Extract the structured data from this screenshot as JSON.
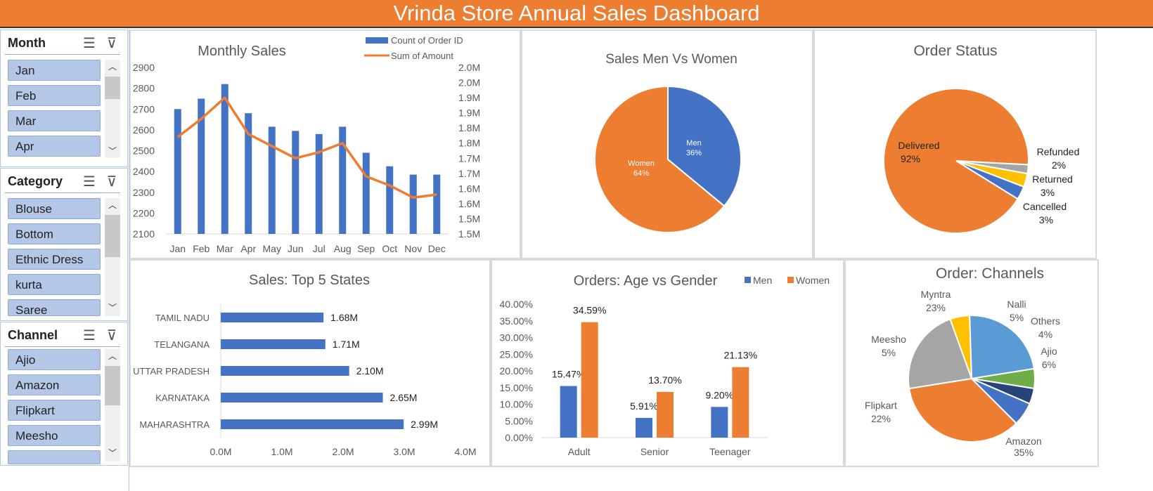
{
  "dashboard": {
    "title": "Vrinda Store Annual Sales Dashboard"
  },
  "colors": {
    "header": "#ed7d31",
    "orange": "#ed7d31",
    "blue": "#4472c4",
    "slicer_item": "#b4c7e7"
  },
  "slicers": [
    {
      "title": "Month",
      "items": [
        "Jan",
        "Feb",
        "Mar",
        "Apr"
      ]
    },
    {
      "title": "Category",
      "items": [
        "Blouse",
        "Bottom",
        "Ethnic Dress",
        "kurta",
        "Saree"
      ]
    },
    {
      "title": "Channel",
      "items": [
        "Ajio",
        "Amazon",
        "Flipkart",
        "Meesho"
      ]
    }
  ],
  "icons": {
    "multi_select": "multi-select-icon",
    "clear_filter": "clear-filter-icon",
    "scroll_up": "chevron-up-icon",
    "scroll_down": "chevron-down-icon"
  },
  "chart_data": [
    {
      "type": "bar+line",
      "title": "Monthly Sales",
      "categories": [
        "Jan",
        "Feb",
        "Mar",
        "Apr",
        "May",
        "Jun",
        "Jul",
        "Aug",
        "Sep",
        "Oct",
        "Nov",
        "Dec"
      ],
      "series": [
        {
          "name": "Count of Order ID",
          "kind": "bar",
          "axis": "left",
          "color": "#4472c4",
          "values": [
            2700,
            2750,
            2820,
            2680,
            2615,
            2595,
            2580,
            2615,
            2490,
            2425,
            2385,
            2385
          ]
        },
        {
          "name": "Sum of Amount",
          "kind": "line",
          "axis": "right",
          "color": "#ed7d31",
          "values": [
            1.82,
            1.88,
            1.95,
            1.83,
            1.79,
            1.75,
            1.77,
            1.8,
            1.69,
            1.66,
            1.62,
            1.63
          ]
        }
      ],
      "ylim_left": [
        2100,
        2900
      ],
      "yticks_left": [
        "2100",
        "2200",
        "2300",
        "2400",
        "2500",
        "2600",
        "2700",
        "2800",
        "2900"
      ],
      "ylim_right": [
        1.5,
        2.05
      ],
      "yticks_right": [
        "1.5M",
        "1.5M",
        "1.6M",
        "1.6M",
        "1.7M",
        "1.7M",
        "1.8M",
        "1.8M",
        "1.9M",
        "1.9M",
        "2.0M",
        "2.0M"
      ],
      "legend": "top-right"
    },
    {
      "type": "pie",
      "title": "Sales Men Vs Women",
      "labels": [
        "Men",
        "Women"
      ],
      "values": [
        36,
        64
      ],
      "data_labels": [
        "36%",
        "64%"
      ],
      "colors": [
        "#4472c4",
        "#ed7d31"
      ]
    },
    {
      "type": "pie",
      "title": "Order Status",
      "labels": [
        "Delivered",
        "Refunded",
        "Returned",
        "Cancelled"
      ],
      "values": [
        92,
        2,
        3,
        3
      ],
      "data_labels": [
        "92%",
        "2%",
        "3%",
        "3%"
      ],
      "colors": [
        "#ed7d31",
        "#a5a5a5",
        "#ffc000",
        "#4472c4"
      ]
    },
    {
      "type": "bar",
      "orientation": "horizontal",
      "title": "Sales: Top 5 States",
      "categories": [
        "TAMIL NADU",
        "TELANGANA",
        "UTTAR PRADESH",
        "KARNATAKA",
        "MAHARASHTRA"
      ],
      "values": [
        1.68,
        1.71,
        2.1,
        2.65,
        2.99
      ],
      "data_labels": [
        "1.68M",
        "1.71M",
        "2.10M",
        "2.65M",
        "2.99M"
      ],
      "xlim": [
        0,
        4
      ],
      "xticks": [
        "0.0M",
        "1.0M",
        "2.0M",
        "3.0M",
        "4.0M"
      ],
      "color": "#4472c4"
    },
    {
      "type": "bar",
      "title": "Orders: Age vs Gender",
      "categories": [
        "Adult",
        "Senior",
        "Teenager"
      ],
      "series": [
        {
          "name": "Men",
          "color": "#4472c4",
          "values": [
            15.47,
            5.91,
            9.2
          ],
          "data_labels": [
            "15.47%",
            "5.91%",
            "9.20%"
          ]
        },
        {
          "name": "Women",
          "color": "#ed7d31",
          "values": [
            34.59,
            13.7,
            21.13
          ],
          "data_labels": [
            "34.59%",
            "13.70%",
            "21.13%"
          ]
        }
      ],
      "ylim": [
        0,
        40
      ],
      "yticks": [
        "0.00%",
        "5.00%",
        "10.00%",
        "15.00%",
        "20.00%",
        "25.00%",
        "30.00%",
        "35.00%",
        "40.00%"
      ],
      "legend": "top-right"
    },
    {
      "type": "pie",
      "title": "Order: Channels",
      "labels": [
        "Amazon",
        "Flipkart",
        "Meesho",
        "Myntra",
        "Nalli",
        "Others",
        "Ajio"
      ],
      "values": [
        35,
        22,
        5,
        23,
        5,
        4,
        6
      ],
      "data_labels": [
        "35%",
        "22%",
        "5%",
        "23%",
        "5%",
        "4%",
        "6%"
      ],
      "colors": [
        "#ed7d31",
        "#a5a5a5",
        "#ffc000",
        "#5b9bd5",
        "#70ad47",
        "#264478",
        "#4472c4"
      ]
    }
  ]
}
